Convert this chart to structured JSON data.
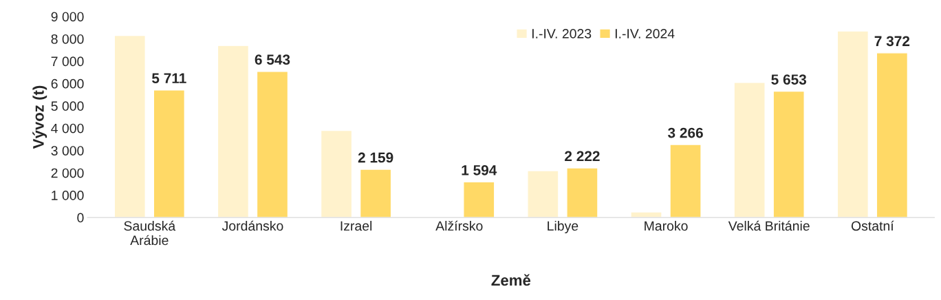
{
  "chart_data": {
    "type": "bar",
    "xlabel": "Země",
    "ylabel": "Vývoz (t)",
    "categories": [
      "Saudská\nArábie",
      "Jordánsko",
      "Izrael",
      "Alžírsko",
      "Libye",
      "Maroko",
      "Velká Británie",
      "Ostatní"
    ],
    "series": [
      {
        "name": "I.-IV. 2023",
        "color": "#fff2cc",
        "values": [
          8150,
          7700,
          3900,
          null,
          2100,
          250,
          6050,
          8350
        ]
      },
      {
        "name": "I.-IV. 2024",
        "color": "#ffd966",
        "values": [
          5711,
          6543,
          2159,
          1594,
          2222,
          3266,
          5653,
          7372
        ],
        "value_labels": [
          "5 711",
          "6 543",
          "2 159",
          "1 594",
          "2 222",
          "3 266",
          "5 653",
          "7 372"
        ]
      }
    ],
    "ylim": [
      0,
      9000
    ],
    "yticks": [
      {
        "value": 0,
        "label": "0"
      },
      {
        "value": 1000,
        "label": "1 000"
      },
      {
        "value": 2000,
        "label": "2 000"
      },
      {
        "value": 3000,
        "label": "3 000"
      },
      {
        "value": 4000,
        "label": "4 000"
      },
      {
        "value": 5000,
        "label": "5 000"
      },
      {
        "value": 6000,
        "label": "6 000"
      },
      {
        "value": 7000,
        "label": "7 000"
      },
      {
        "value": 8000,
        "label": "8 000"
      },
      {
        "value": 9000,
        "label": "9 000"
      }
    ],
    "grid": false,
    "legend": "top"
  }
}
